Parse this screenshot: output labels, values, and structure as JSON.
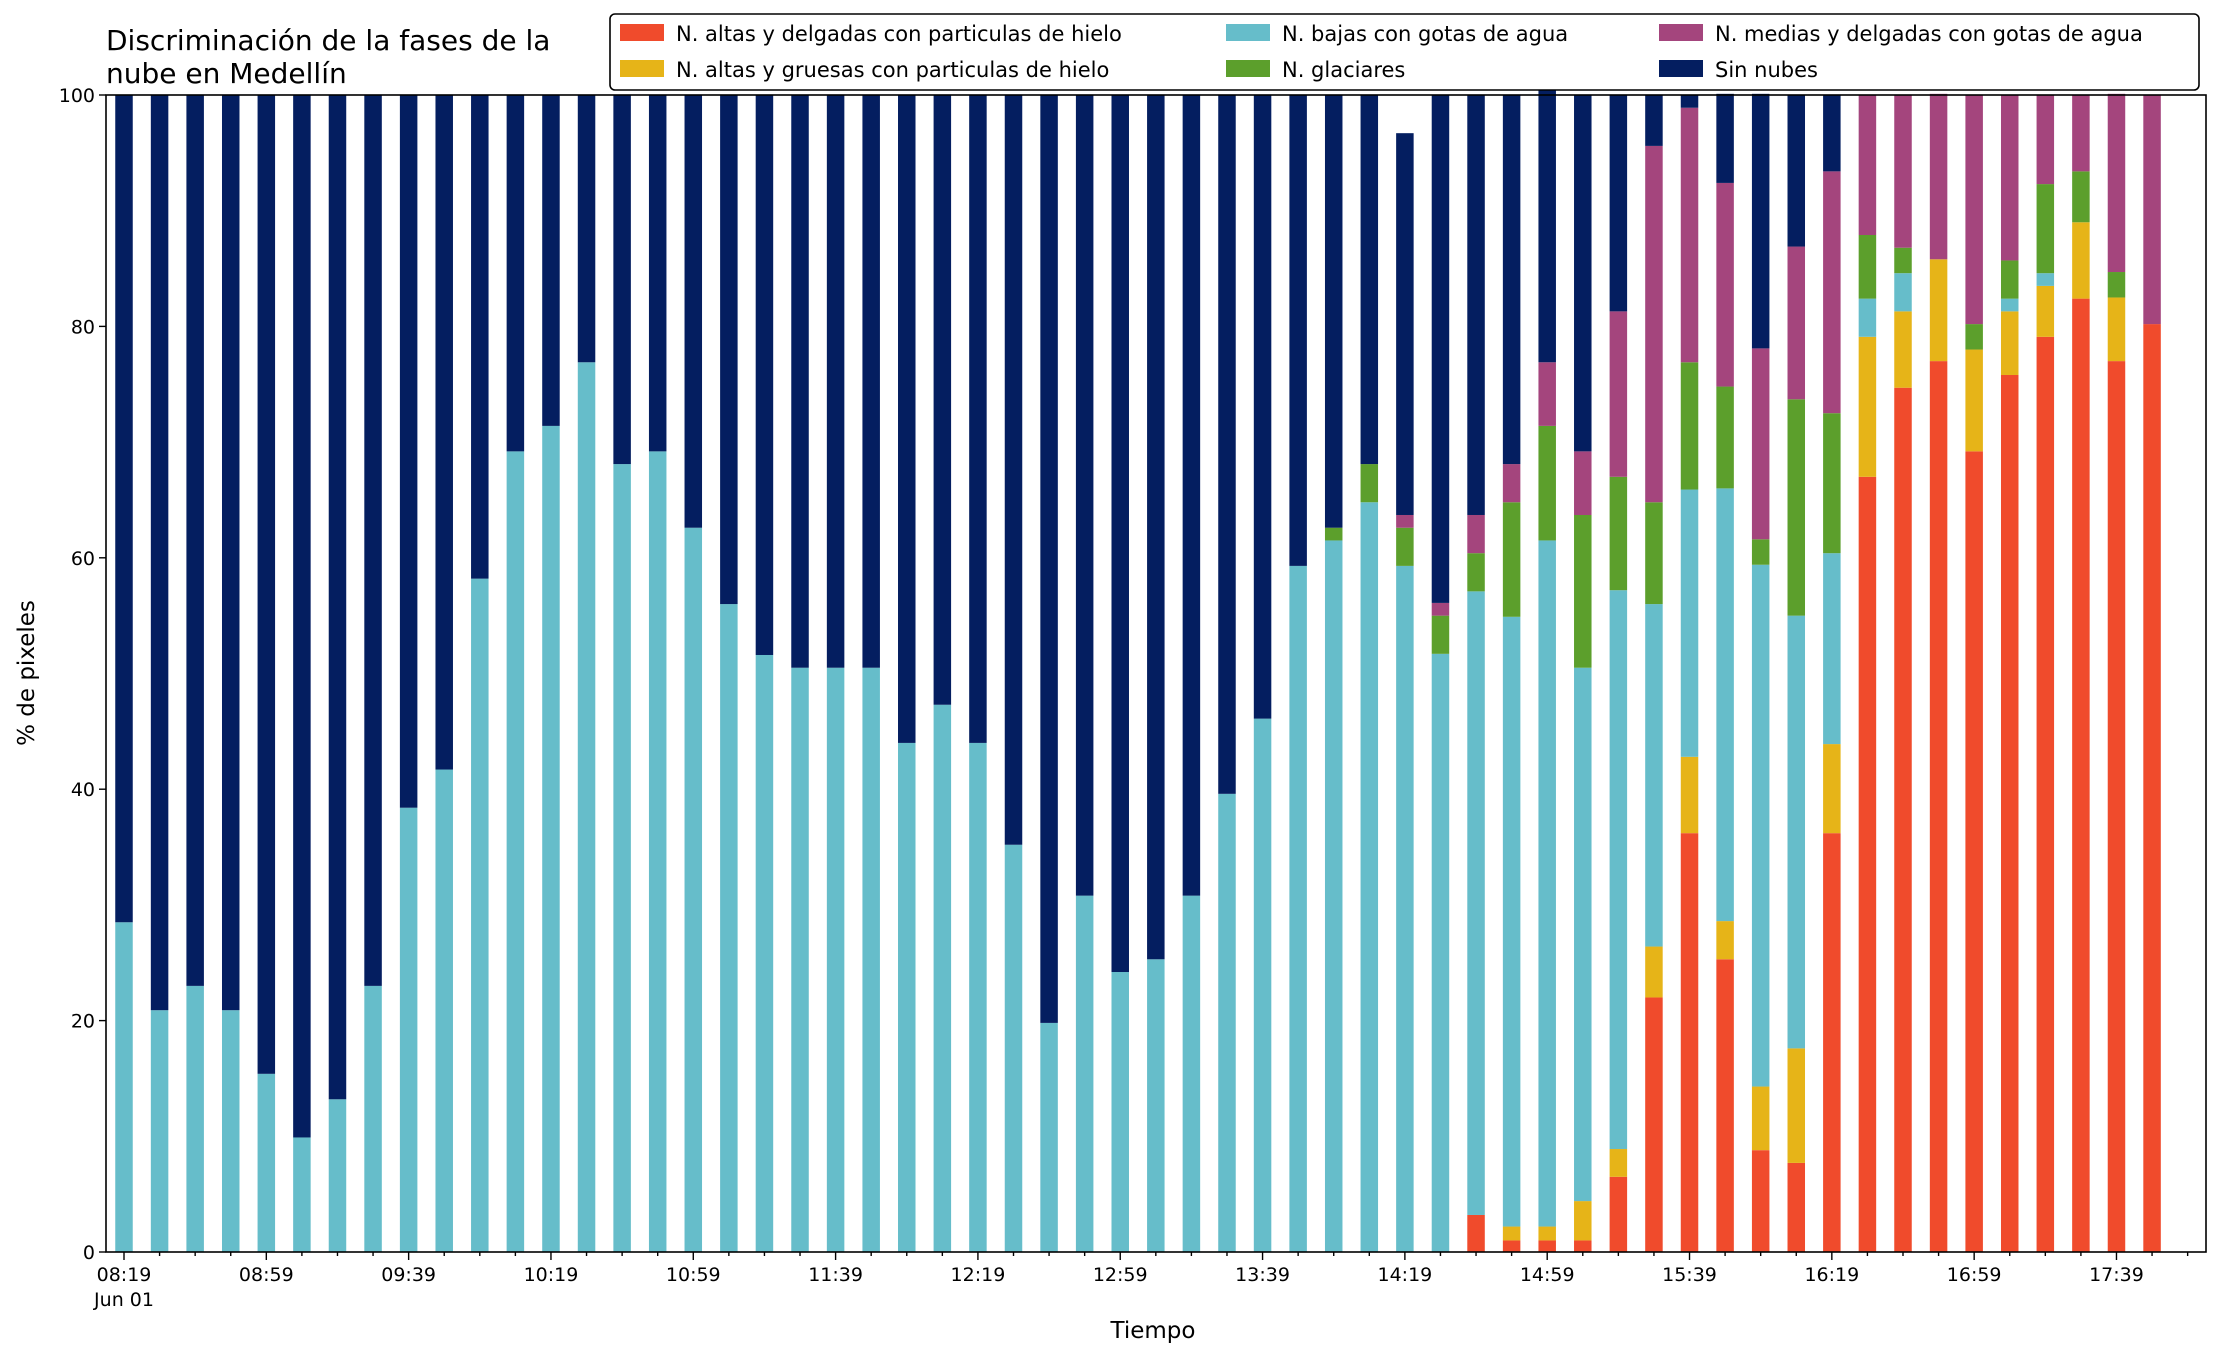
{
  "chart_data": {
    "type": "bar",
    "stacked": true,
    "title": [
      "Discriminación de la fases de la",
      "nube en Medellín"
    ],
    "xlabel": "Tiempo",
    "ylabel": "% de pixeles",
    "ylim": [
      0,
      100
    ],
    "yticks": [
      0,
      20,
      40,
      60,
      80,
      100
    ],
    "xtick_labels": [
      "08:19",
      "08:59",
      "09:39",
      "10:19",
      "10:59",
      "11:39",
      "12:19",
      "12:59",
      "13:39",
      "14:19",
      "14:59",
      "15:39",
      "16:19",
      "16:59",
      "17:39"
    ],
    "xtick_sublabel": "Jun 01",
    "legend_position": "top",
    "categories": [
      "08:19",
      "08:29",
      "08:39",
      "08:49",
      "08:59",
      "09:09",
      "09:19",
      "09:29",
      "09:39",
      "09:49",
      "09:59",
      "10:09",
      "10:19",
      "10:29",
      "10:39",
      "10:49",
      "10:59",
      "11:09",
      "11:19",
      "11:29",
      "11:39",
      "11:49",
      "11:59",
      "12:09",
      "12:19",
      "12:29",
      "12:39",
      "12:49",
      "12:59",
      "13:09",
      "13:19",
      "13:29",
      "13:39",
      "13:49",
      "13:59",
      "14:09",
      "14:19",
      "14:29",
      "14:39",
      "14:49",
      "14:59",
      "15:09",
      "15:19",
      "15:29",
      "15:39",
      "15:49",
      "15:59",
      "16:09",
      "16:19",
      "16:29",
      "16:39",
      "16:49",
      "16:59",
      "17:09",
      "17:19",
      "17:29",
      "17:39",
      "17:49"
    ],
    "series": [
      {
        "name": "N. altas y delgadas con particulas de hielo",
        "color": "#f04b2c",
        "values": [
          0,
          0,
          0,
          0,
          0,
          0,
          0,
          0,
          0,
          0,
          0,
          0,
          0,
          0,
          0,
          0,
          0,
          0,
          0,
          0,
          0,
          0,
          0,
          0,
          0,
          0,
          0,
          0,
          0,
          0,
          0,
          0,
          0,
          0,
          0,
          0,
          0,
          0,
          3.2,
          1,
          1,
          1,
          6.5,
          22,
          36.2,
          25.3,
          8.8,
          7.7,
          36.2,
          67,
          74.7,
          77,
          69.2,
          75.8,
          79.1,
          82.4,
          77,
          80.2
        ]
      },
      {
        "name": "N. altas y gruesas con particulas de hielo",
        "color": "#e6b418",
        "values": [
          0,
          0,
          0,
          0,
          0,
          0,
          0,
          0,
          0,
          0,
          0,
          0,
          0,
          0,
          0,
          0,
          0,
          0,
          0,
          0,
          0,
          0,
          0,
          0,
          0,
          0,
          0,
          0,
          0,
          0,
          0,
          0,
          0,
          0,
          0,
          0,
          0,
          0,
          0,
          1.2,
          1.2,
          3.4,
          2.4,
          4.4,
          6.6,
          3.3,
          5.5,
          9.9,
          7.7,
          12.1,
          6.6,
          8.8,
          8.8,
          5.5,
          4.4,
          6.6,
          5.5,
          0
        ]
      },
      {
        "name": "N. bajas con gotas de agua",
        "color": "#66bdca",
        "values": [
          28.5,
          20.9,
          23,
          20.9,
          15.4,
          9.9,
          13.2,
          23,
          38.4,
          41.7,
          58.2,
          69.2,
          71.4,
          76.9,
          68.1,
          69.2,
          62.6,
          56,
          51.6,
          50.5,
          50.5,
          50.5,
          44,
          47.3,
          44,
          35.2,
          19.8,
          30.8,
          24.2,
          25.3,
          30.8,
          39.6,
          46.1,
          59.3,
          61.5,
          64.8,
          59.3,
          51.7,
          53.9,
          52.7,
          59.3,
          46.1,
          48.3,
          29.6,
          23.1,
          37.4,
          45.1,
          37.4,
          16.5,
          3.3,
          3.3,
          0,
          0,
          1.1,
          1.1,
          0,
          0,
          0
        ]
      },
      {
        "name": "N. glaciares",
        "color": "#5c9f2c",
        "values": [
          0,
          0,
          0,
          0,
          0,
          0,
          0,
          0,
          0,
          0,
          0,
          0,
          0,
          0,
          0,
          0,
          0,
          0,
          0,
          0,
          0,
          0,
          0,
          0,
          0,
          0,
          0,
          0,
          0,
          0,
          0,
          0,
          0,
          0,
          1.1,
          3.3,
          3.3,
          3.3,
          3.3,
          9.9,
          9.9,
          13.2,
          9.8,
          8.8,
          11,
          8.8,
          2.2,
          18.7,
          12.1,
          5.5,
          2.2,
          0,
          2.2,
          3.3,
          7.7,
          4.4,
          2.2,
          0
        ]
      },
      {
        "name": "N. medias y delgadas con gotas de agua",
        "color": "#a4457d",
        "values": [
          0,
          0,
          0,
          0,
          0,
          0,
          0,
          0,
          0,
          0,
          0,
          0,
          0,
          0,
          0,
          0,
          0,
          0,
          0,
          0,
          0,
          0,
          0,
          0,
          0,
          0,
          0,
          0,
          0,
          0,
          0,
          0,
          0,
          0,
          0,
          0,
          1.1,
          1.1,
          3.3,
          3.3,
          5.5,
          5.5,
          14.3,
          30.8,
          22,
          17.6,
          16.5,
          13.2,
          20.9,
          12.1,
          13.2,
          14.3,
          19.8,
          14.3,
          7.7,
          6.6,
          15.4,
          19.8
        ]
      },
      {
        "name": "Sin nubes",
        "color": "#041e60",
        "values": [
          71.5,
          79.1,
          77,
          79.1,
          84.6,
          90.1,
          86.8,
          77,
          61.6,
          58.3,
          41.8,
          30.8,
          28.6,
          23.1,
          31.9,
          30.8,
          37.4,
          44,
          48.4,
          49.5,
          49.5,
          49.5,
          56,
          52.7,
          56,
          64.8,
          80.2,
          69.2,
          75.8,
          74.7,
          69.2,
          60.4,
          53.9,
          40.7,
          37.4,
          31.9,
          33,
          43.9,
          36.3,
          31.9,
          24.1,
          30.8,
          18.7,
          4.4,
          1.1,
          7.7,
          22,
          13.1,
          6.6,
          0,
          0,
          0,
          0,
          0,
          0,
          0,
          0,
          0
        ]
      }
    ]
  }
}
